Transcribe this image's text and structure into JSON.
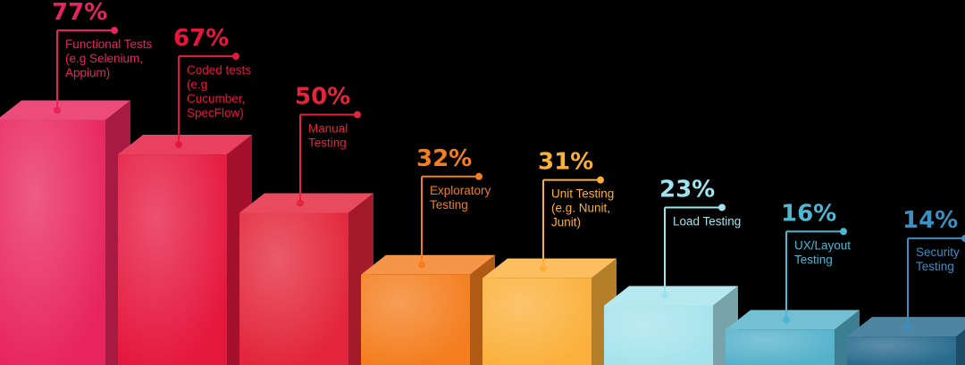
{
  "chart_data": {
    "type": "bar",
    "categories": [
      [
        "Functional Tests",
        "(e.g  Selenium,",
        "Appium)"
      ],
      [
        "Coded tests",
        "(e.g",
        "Cucumber,",
        "SpecFlow)"
      ],
      [
        "Manual",
        "Testing"
      ],
      [
        "Exploratory",
        "Testing"
      ],
      [
        "Unit Testing",
        "(e.g. Nunit,",
        "Junit)"
      ],
      [
        "Load Testing"
      ],
      [
        "UX/Layout",
        "Testing"
      ],
      [
        "Security",
        "Testing"
      ]
    ],
    "values": [
      77,
      67,
      50,
      32,
      31,
      23,
      16,
      14
    ],
    "value_labels": [
      "77%",
      "67%",
      "50%",
      "32%",
      "31%",
      "23%",
      "16%",
      "14%"
    ],
    "title": "",
    "xlabel": "",
    "ylabel": "",
    "ylim": [
      0,
      100
    ],
    "grid": false,
    "legend": "none",
    "colors": [
      "#e8245e",
      "#e5173d",
      "#e3243a",
      "#f47d1e",
      "#fbb03b",
      "#a5e3ec",
      "#54b1cb",
      "#276a8e"
    ],
    "label_colors": [
      "#e8245e",
      "#e5173d",
      "#e3243a",
      "#f47d1e",
      "#fbb03b",
      "#9fe3ef",
      "#4fb6d4",
      "#3d8fc0"
    ]
  }
}
